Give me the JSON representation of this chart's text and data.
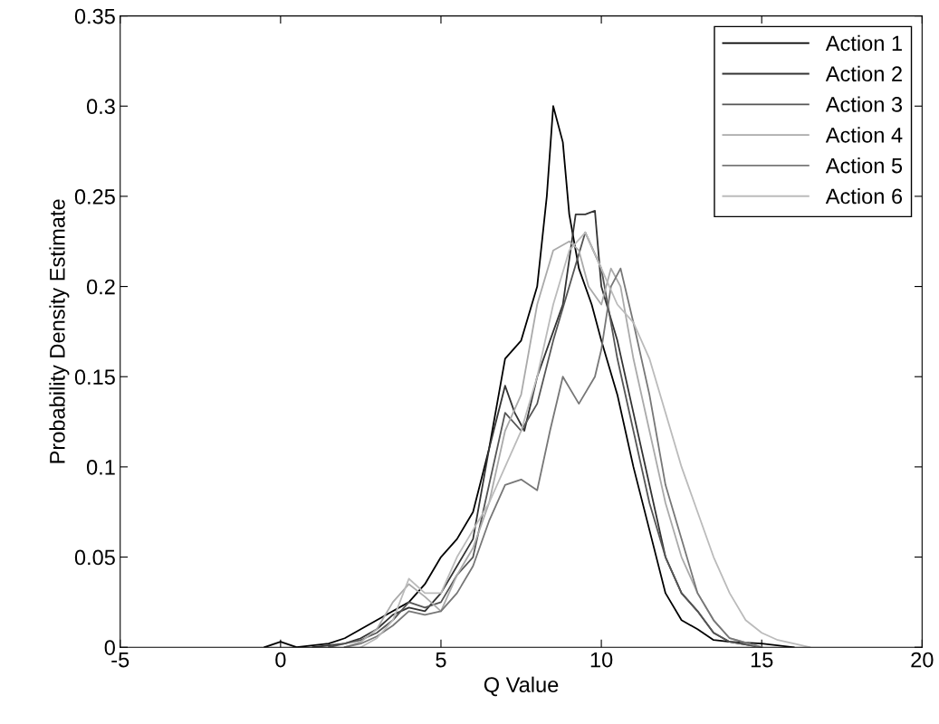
{
  "chart_data": {
    "type": "line",
    "xlabel": "Q Value",
    "ylabel": "Probability Density Estimate",
    "xlim": [
      -5,
      20
    ],
    "ylim": [
      0,
      0.35
    ],
    "xticks": [
      -5,
      0,
      5,
      10,
      15,
      20
    ],
    "yticks": [
      0,
      0.05,
      0.1,
      0.15,
      0.2,
      0.25,
      0.3,
      0.35
    ],
    "grid": false,
    "legend": "top right",
    "line_style": "solid",
    "marker": "none",
    "series": [
      {
        "name": "Action 1",
        "color": "#000000",
        "x": [
          -0.5,
          0,
          0.5,
          1.5,
          2,
          2.5,
          3,
          3.5,
          4,
          4.5,
          5,
          5.5,
          6,
          6.5,
          7,
          7.5,
          8,
          8.3,
          8.5,
          8.8,
          9,
          9.3,
          9.7,
          10,
          10.5,
          11,
          11.5,
          12,
          12.5,
          13,
          13.5,
          14,
          15,
          16
        ],
        "values": [
          0,
          0.003,
          0,
          0.002,
          0.005,
          0.01,
          0.015,
          0.02,
          0.025,
          0.035,
          0.05,
          0.06,
          0.075,
          0.11,
          0.16,
          0.17,
          0.2,
          0.25,
          0.3,
          0.28,
          0.24,
          0.21,
          0.19,
          0.17,
          0.14,
          0.1,
          0.065,
          0.03,
          0.015,
          0.01,
          0.004,
          0.003,
          0.002,
          0
        ]
      },
      {
        "name": "Action 2",
        "color": "#333333",
        "x": [
          1,
          2,
          2.5,
          3,
          3.5,
          4,
          4.5,
          5,
          5.5,
          6,
          6.5,
          7,
          7.3,
          7.6,
          8,
          8.4,
          8.8,
          9.2,
          9.5,
          9.8,
          10,
          10.5,
          11,
          11.5,
          12,
          12.5,
          13,
          13.5,
          14,
          15
        ],
        "values": [
          0,
          0.002,
          0.005,
          0.01,
          0.018,
          0.022,
          0.02,
          0.03,
          0.045,
          0.06,
          0.11,
          0.145,
          0.13,
          0.12,
          0.15,
          0.17,
          0.19,
          0.24,
          0.24,
          0.242,
          0.2,
          0.17,
          0.13,
          0.09,
          0.05,
          0.03,
          0.02,
          0.008,
          0.003,
          0
        ]
      },
      {
        "name": "Action 3",
        "color": "#555555",
        "x": [
          1.5,
          2,
          2.5,
          3,
          3.5,
          4,
          4.5,
          5,
          5.5,
          6,
          6.5,
          7,
          7.5,
          8,
          8.5,
          9,
          9.5,
          10,
          10.5,
          11,
          11.5,
          12,
          12.5,
          13,
          13.5,
          14,
          15
        ],
        "values": [
          0,
          0.002,
          0.004,
          0.008,
          0.015,
          0.025,
          0.022,
          0.025,
          0.04,
          0.05,
          0.09,
          0.13,
          0.12,
          0.135,
          0.17,
          0.2,
          0.23,
          0.21,
          0.16,
          0.12,
          0.08,
          0.05,
          0.03,
          0.02,
          0.008,
          0.003,
          0
        ]
      },
      {
        "name": "Action 4",
        "color": "#aaaaaa",
        "x": [
          2,
          2.5,
          3,
          3.5,
          4,
          4.5,
          5,
          5.5,
          6,
          6.5,
          7,
          7.5,
          8,
          8.5,
          9,
          9.3,
          9.6,
          10,
          10.3,
          10.6,
          11,
          11.5,
          12,
          12.5,
          13,
          13.5,
          14,
          15
        ],
        "values": [
          0,
          0.003,
          0.01,
          0.025,
          0.035,
          0.028,
          0.02,
          0.04,
          0.055,
          0.08,
          0.12,
          0.14,
          0.19,
          0.22,
          0.225,
          0.22,
          0.2,
          0.19,
          0.21,
          0.2,
          0.16,
          0.12,
          0.08,
          0.05,
          0.03,
          0.015,
          0.005,
          0
        ]
      },
      {
        "name": "Action 5",
        "color": "#777777",
        "x": [
          2,
          2.5,
          3,
          3.5,
          4,
          4.5,
          5,
          5.5,
          6,
          6.5,
          7,
          7.5,
          8,
          8.4,
          8.8,
          9.3,
          9.8,
          10,
          10.3,
          10.6,
          11,
          11.5,
          12,
          12.5,
          13,
          13.5,
          14,
          15
        ],
        "values": [
          0,
          0.002,
          0.006,
          0.012,
          0.02,
          0.018,
          0.02,
          0.03,
          0.045,
          0.07,
          0.09,
          0.093,
          0.087,
          0.12,
          0.15,
          0.135,
          0.15,
          0.165,
          0.2,
          0.21,
          0.18,
          0.14,
          0.09,
          0.06,
          0.03,
          0.015,
          0.005,
          0
        ]
      },
      {
        "name": "Action 6",
        "color": "#bbbbbb",
        "x": [
          2.5,
          3,
          3.5,
          4,
          4.5,
          5,
          5.5,
          6,
          6.5,
          7,
          7.5,
          8,
          8.5,
          9,
          9.5,
          10,
          10.5,
          11,
          11.5,
          12,
          12.5,
          13,
          13.5,
          14,
          14.5,
          15,
          15.5,
          16,
          16.5
        ],
        "values": [
          0,
          0.005,
          0.015,
          0.038,
          0.03,
          0.03,
          0.05,
          0.065,
          0.08,
          0.1,
          0.12,
          0.15,
          0.19,
          0.22,
          0.23,
          0.21,
          0.19,
          0.18,
          0.16,
          0.13,
          0.1,
          0.075,
          0.05,
          0.03,
          0.015,
          0.008,
          0.004,
          0.002,
          0
        ]
      }
    ]
  }
}
